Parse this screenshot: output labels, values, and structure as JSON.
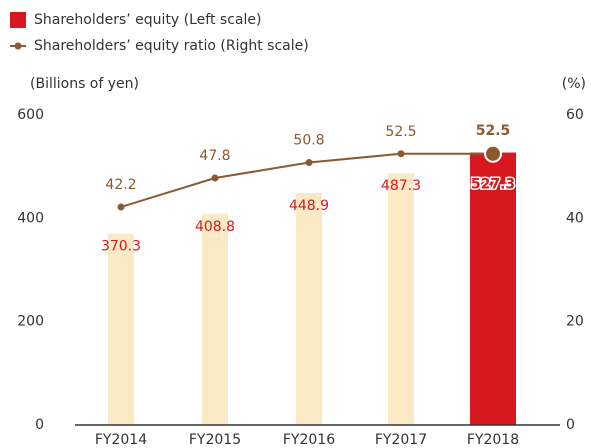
{
  "chart_data": {
    "type": "bar_line",
    "ylabel": "(Billions of yen)",
    "y2label": "(%)",
    "categories": [
      "FY2014",
      "FY2015",
      "FY2016",
      "FY2017",
      "FY2018"
    ],
    "series": [
      {
        "name": "Shareholders’ equity (Left scale)",
        "type": "bar",
        "color": "#d7191f",
        "colors": [
          "#fbe8c4",
          "#fbe8c4",
          "#fbe8c4",
          "#fbe8c4",
          "#d7191f"
        ],
        "values": [
          370.3,
          408.8,
          448.9,
          487.3,
          527.3
        ]
      },
      {
        "name": "Shareholders’ equity ratio (Right scale)",
        "type": "line",
        "axis": "y2",
        "color": "#8c5a2e",
        "values": [
          42.2,
          47.8,
          50.8,
          52.5,
          52.5
        ]
      }
    ],
    "ylim": [
      0,
      600
    ],
    "yticks": [
      0,
      200,
      400,
      600
    ],
    "y2lim": [
      0,
      60
    ],
    "y2ticks": [
      0,
      20,
      40,
      60
    ]
  }
}
